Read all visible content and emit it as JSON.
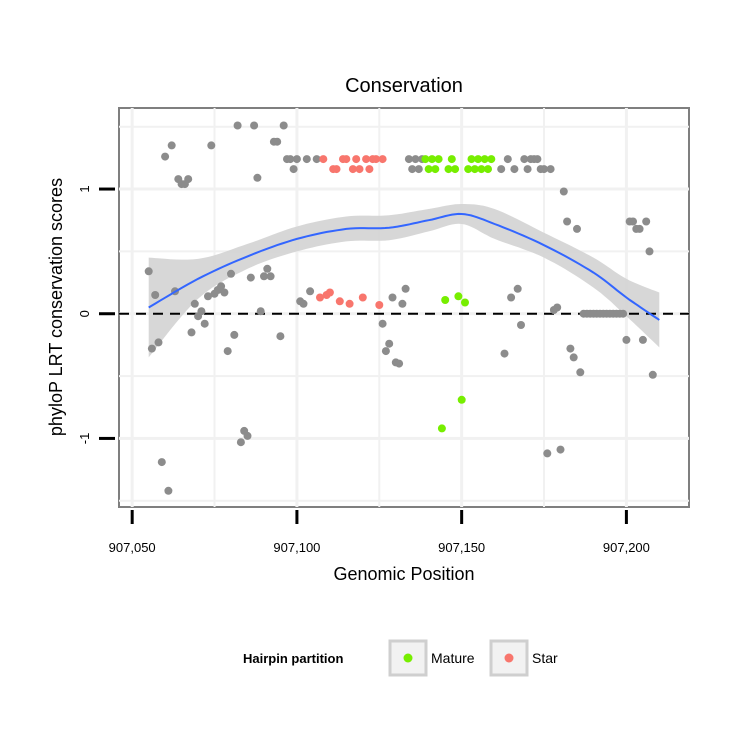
{
  "chart_data": {
    "type": "scatter",
    "title": "Conservation",
    "xlabel": "Genomic Position",
    "ylabel": "phyloP LRT conservation scores",
    "xlim": [
      907046,
      907219
    ],
    "ylim": [
      -1.55,
      1.65
    ],
    "x_ticks": [
      907050,
      907100,
      907150,
      907200
    ],
    "x_tick_labels": [
      "907,050",
      "907,100",
      "907,150",
      "907,200"
    ],
    "y_ticks": [
      -1,
      0,
      1
    ],
    "y_tick_labels": [
      "-1",
      "0",
      "1"
    ],
    "reference_line": {
      "y": 0,
      "style": "dashed"
    },
    "legend": {
      "title": "Hairpin partition",
      "position": "bottom",
      "entries": [
        {
          "label": "Mature",
          "color": "#77ee00"
        },
        {
          "label": "Star",
          "color": "#f8766d"
        }
      ]
    },
    "colors": {
      "other": "#8c8c8c",
      "Mature": "#77ee00",
      "Star": "#f8766d",
      "smooth": "#3366ff",
      "band": "#d3d3d3"
    },
    "series": [
      {
        "name": "Other",
        "points": [
          [
            907055,
            0.34
          ],
          [
            907056,
            -0.28
          ],
          [
            907057,
            0.15
          ],
          [
            907058,
            -0.23
          ],
          [
            907059,
            -1.19
          ],
          [
            907060,
            1.26
          ],
          [
            907061,
            -1.42
          ],
          [
            907062,
            1.35
          ],
          [
            907063,
            0.18
          ],
          [
            907064,
            1.08
          ],
          [
            907065,
            1.04
          ],
          [
            907066,
            1.04
          ],
          [
            907067,
            1.08
          ],
          [
            907068,
            -0.15
          ],
          [
            907069,
            0.08
          ],
          [
            907070,
            -0.02
          ],
          [
            907071,
            0.02
          ],
          [
            907072,
            -0.08
          ],
          [
            907073,
            0.14
          ],
          [
            907074,
            1.35
          ],
          [
            907075,
            0.16
          ],
          [
            907076,
            0.19
          ],
          [
            907077,
            0.22
          ],
          [
            907078,
            0.17
          ],
          [
            907079,
            -0.3
          ],
          [
            907080,
            0.32
          ],
          [
            907081,
            -0.17
          ],
          [
            907082,
            1.51
          ],
          [
            907083,
            -1.03
          ],
          [
            907084,
            -0.94
          ],
          [
            907085,
            -0.98
          ],
          [
            907086,
            0.29
          ],
          [
            907087,
            1.51
          ],
          [
            907088,
            1.09
          ],
          [
            907089,
            0.02
          ],
          [
            907090,
            0.3
          ],
          [
            907091,
            0.36
          ],
          [
            907092,
            0.3
          ],
          [
            907093,
            1.38
          ],
          [
            907094,
            1.38
          ],
          [
            907095,
            -0.18
          ],
          [
            907096,
            1.51
          ],
          [
            907097,
            1.24
          ],
          [
            907098,
            1.24
          ],
          [
            907099,
            1.16
          ],
          [
            907100,
            1.24
          ],
          [
            907101,
            0.1
          ],
          [
            907102,
            0.08
          ],
          [
            907103,
            1.24
          ],
          [
            907104,
            0.18
          ],
          [
            907106,
            1.24
          ],
          [
            907126,
            -0.08
          ],
          [
            907127,
            -0.3
          ],
          [
            907128,
            -0.24
          ],
          [
            907129,
            0.13
          ],
          [
            907130,
            -0.39
          ],
          [
            907131,
            -0.4
          ],
          [
            907132,
            0.08
          ],
          [
            907133,
            0.2
          ],
          [
            907134,
            1.24
          ],
          [
            907135,
            1.16
          ],
          [
            907136,
            1.24
          ],
          [
            907137,
            1.16
          ],
          [
            907138,
            1.24
          ],
          [
            907162,
            1.16
          ],
          [
            907163,
            -0.32
          ],
          [
            907164,
            1.24
          ],
          [
            907165,
            0.13
          ],
          [
            907166,
            1.16
          ],
          [
            907167,
            0.2
          ],
          [
            907168,
            -0.09
          ],
          [
            907169,
            1.24
          ],
          [
            907170,
            1.16
          ],
          [
            907171,
            1.24
          ],
          [
            907172,
            1.24
          ],
          [
            907173,
            1.24
          ],
          [
            907174,
            1.16
          ],
          [
            907175,
            1.16
          ],
          [
            907176,
            -1.12
          ],
          [
            907177,
            1.16
          ],
          [
            907178,
            0.03
          ],
          [
            907179,
            0.05
          ],
          [
            907180,
            -1.09
          ],
          [
            907181,
            0.98
          ],
          [
            907182,
            0.74
          ],
          [
            907183,
            -0.28
          ],
          [
            907184,
            -0.35
          ],
          [
            907185,
            0.68
          ],
          [
            907186,
            -0.47
          ],
          [
            907187,
            0.0
          ],
          [
            907188,
            0.0
          ],
          [
            907189,
            0.0
          ],
          [
            907190,
            0.0
          ],
          [
            907191,
            0.0
          ],
          [
            907192,
            0.0
          ],
          [
            907193,
            0.0
          ],
          [
            907194,
            0.0
          ],
          [
            907195,
            0.0
          ],
          [
            907196,
            0.0
          ],
          [
            907197,
            0.0
          ],
          [
            907198,
            0.0
          ],
          [
            907199,
            0.0
          ],
          [
            907200,
            -0.21
          ],
          [
            907201,
            0.74
          ],
          [
            907202,
            0.74
          ],
          [
            907203,
            0.68
          ],
          [
            907204,
            0.68
          ],
          [
            907205,
            -0.21
          ],
          [
            907206,
            0.74
          ],
          [
            907207,
            0.5
          ],
          [
            907208,
            -0.49
          ]
        ]
      },
      {
        "name": "Star",
        "points": [
          [
            907107,
            0.13
          ],
          [
            907108,
            1.24
          ],
          [
            907109,
            0.15
          ],
          [
            907110,
            0.17
          ],
          [
            907111,
            1.16
          ],
          [
            907112,
            1.16
          ],
          [
            907113,
            0.1
          ],
          [
            907114,
            1.24
          ],
          [
            907115,
            1.24
          ],
          [
            907116,
            0.08
          ],
          [
            907117,
            1.16
          ],
          [
            907118,
            1.24
          ],
          [
            907119,
            1.16
          ],
          [
            907120,
            0.13
          ],
          [
            907121,
            1.24
          ],
          [
            907122,
            1.16
          ],
          [
            907123,
            1.24
          ],
          [
            907124,
            1.24
          ],
          [
            907125,
            0.07
          ],
          [
            907126,
            1.24
          ]
        ]
      },
      {
        "name": "Mature",
        "points": [
          [
            907139,
            1.24
          ],
          [
            907140,
            1.16
          ],
          [
            907141,
            1.24
          ],
          [
            907142,
            1.16
          ],
          [
            907143,
            1.24
          ],
          [
            907144,
            -0.92
          ],
          [
            907145,
            0.11
          ],
          [
            907146,
            1.16
          ],
          [
            907147,
            1.24
          ],
          [
            907148,
            1.16
          ],
          [
            907149,
            0.14
          ],
          [
            907150,
            -0.69
          ],
          [
            907151,
            0.09
          ],
          [
            907152,
            1.16
          ],
          [
            907153,
            1.24
          ],
          [
            907154,
            1.16
          ],
          [
            907155,
            1.24
          ],
          [
            907156,
            1.16
          ],
          [
            907157,
            1.24
          ],
          [
            907158,
            1.16
          ],
          [
            907159,
            1.24
          ]
        ]
      }
    ],
    "smooth": {
      "x": [
        907055,
        907070,
        907085,
        907100,
        907115,
        907128,
        907140,
        907150,
        907160,
        907175,
        907190,
        907200,
        907210
      ],
      "y": [
        0.05,
        0.28,
        0.46,
        0.6,
        0.68,
        0.69,
        0.75,
        0.8,
        0.72,
        0.55,
        0.33,
        0.13,
        -0.05
      ],
      "se": [
        0.4,
        0.16,
        0.1,
        0.1,
        0.1,
        0.1,
        0.09,
        0.08,
        0.12,
        0.1,
        0.12,
        0.15,
        0.22
      ]
    }
  }
}
